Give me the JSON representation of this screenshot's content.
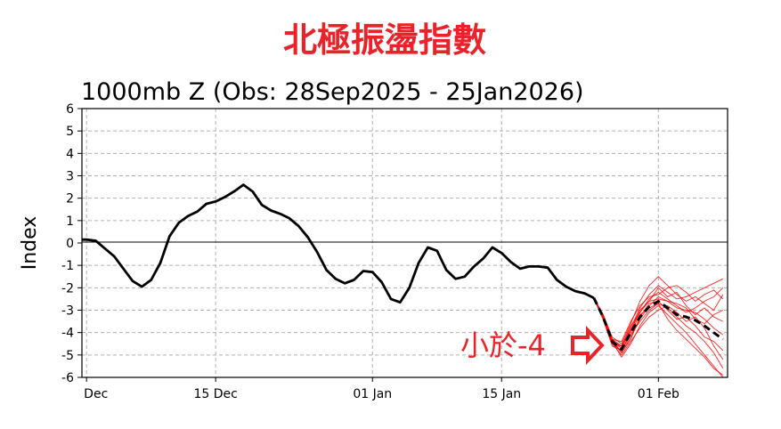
{
  "header": {
    "title": "北極振盪指數",
    "subtitle": "1000mb Z (Obs: 28Sep2025 - 25Jan2026)"
  },
  "annotation": {
    "text": "小於-4",
    "icon": "right-arrow-outline-icon",
    "color": "#e8232a"
  },
  "chart_data": {
    "type": "line",
    "ylabel": "Index",
    "xlabel": "",
    "ylim": [
      -6,
      6
    ],
    "yticks": [
      "-6",
      "-5",
      "-4",
      "-3",
      "-2",
      "-1",
      "0",
      "1",
      "2",
      "3",
      "4",
      "5",
      "6"
    ],
    "xlim": [
      "2025-11-30T12:00",
      "2026-02-08T12:00"
    ],
    "xticks": [
      {
        "date": "2025-12-01",
        "label": "Dec"
      },
      {
        "date": "2025-12-15",
        "label": "15 Dec"
      },
      {
        "date": "2026-01-01",
        "label": "01 Jan"
      },
      {
        "date": "2026-01-15",
        "label": "15 Jan"
      },
      {
        "date": "2026-02-01",
        "label": "01 Feb"
      }
    ],
    "grid": true,
    "colors": {
      "observed": "#000000",
      "members": "#ff0000",
      "ensemble_mean": "#000000"
    },
    "observed": {
      "start": "2025-12-01",
      "values": [
        0.15,
        0.1,
        -0.25,
        -0.6,
        -1.15,
        -1.7,
        -1.95,
        -1.65,
        -0.9,
        0.3,
        0.9,
        1.2,
        1.4,
        1.75,
        1.85,
        2.05,
        2.3,
        2.6,
        2.3,
        1.7,
        1.45,
        1.3,
        1.1,
        0.75,
        0.25,
        -0.4,
        -1.2,
        -1.6,
        -1.8,
        -1.65,
        -1.25,
        -1.3,
        -1.75,
        -2.5,
        -2.65,
        -2.0,
        -0.9,
        -0.2,
        -0.35,
        -1.2,
        -1.6,
        -1.5,
        -1.05,
        -0.7,
        -0.2,
        -0.45,
        -0.85,
        -1.15,
        -1.05,
        -1.05,
        -1.1,
        -1.65,
        -1.95,
        -2.15,
        -2.25,
        -2.45
      ]
    },
    "forecast": {
      "start": "2026-01-25",
      "ensemble_mean": [
        -2.45,
        -3.3,
        -4.4,
        -4.75,
        -4.0,
        -3.3,
        -2.85,
        -2.6,
        -2.9,
        -3.2,
        -3.3,
        -3.45,
        -3.7,
        -4.0,
        -4.3
      ],
      "members": [
        [
          -2.45,
          -3.2,
          -4.3,
          -4.9,
          -4.2,
          -3.4,
          -2.8,
          -2.4,
          -2.6,
          -2.9,
          -3.0,
          -3.1,
          -3.4,
          -3.8,
          -4.1
        ],
        [
          -2.45,
          -3.4,
          -4.5,
          -4.6,
          -3.8,
          -2.9,
          -2.3,
          -1.9,
          -2.2,
          -2.5,
          -2.4,
          -2.2,
          -2.0,
          -1.8,
          -1.6
        ],
        [
          -2.45,
          -3.3,
          -4.4,
          -5.1,
          -4.5,
          -3.7,
          -3.1,
          -2.8,
          -3.2,
          -3.6,
          -4.0,
          -4.5,
          -5.0,
          -5.5,
          -6.0
        ],
        [
          -2.45,
          -3.2,
          -4.2,
          -4.5,
          -3.6,
          -2.6,
          -1.9,
          -1.5,
          -1.9,
          -2.3,
          -2.6,
          -2.4,
          -2.7,
          -3.0,
          -2.3
        ],
        [
          -2.45,
          -3.4,
          -4.6,
          -4.8,
          -4.1,
          -3.5,
          -3.0,
          -2.7,
          -2.9,
          -3.3,
          -3.7,
          -4.0,
          -4.4,
          -4.9,
          -5.6
        ],
        [
          -2.45,
          -3.3,
          -4.3,
          -4.4,
          -3.5,
          -2.8,
          -2.4,
          -2.3,
          -2.0,
          -1.9,
          -2.2,
          -2.6,
          -2.3,
          -2.1,
          -2.5
        ],
        [
          -2.45,
          -3.3,
          -4.5,
          -5.0,
          -4.4,
          -3.8,
          -3.3,
          -3.0,
          -2.8,
          -3.1,
          -3.5,
          -3.3,
          -3.8,
          -4.6,
          -5.2
        ],
        [
          -2.45,
          -3.2,
          -4.4,
          -4.7,
          -3.9,
          -3.0,
          -2.6,
          -2.0,
          -2.4,
          -2.2,
          -2.8,
          -3.2,
          -2.9,
          -3.3,
          -3.5
        ],
        [
          -2.45,
          -3.4,
          -4.4,
          -4.9,
          -4.3,
          -3.3,
          -2.7,
          -2.6,
          -3.0,
          -3.4,
          -3.3,
          -3.7,
          -4.2,
          -4.4,
          -4.8
        ],
        [
          -2.45,
          -3.3,
          -4.3,
          -4.6,
          -3.7,
          -3.1,
          -2.5,
          -2.2,
          -2.5,
          -2.8,
          -3.1,
          -2.9,
          -2.6,
          -2.4,
          -2.0
        ],
        [
          -2.45,
          -3.3,
          -4.5,
          -4.8,
          -4.0,
          -3.2,
          -2.9,
          -2.7,
          -3.4,
          -3.9,
          -4.3,
          -4.7,
          -5.1,
          -5.6,
          -5.9
        ],
        [
          -2.45,
          -3.2,
          -4.4,
          -4.6,
          -3.9,
          -3.1,
          -2.6,
          -2.5,
          -2.6,
          -2.7,
          -2.9,
          -3.4,
          -3.6,
          -3.2,
          -3.0
        ]
      ]
    }
  }
}
